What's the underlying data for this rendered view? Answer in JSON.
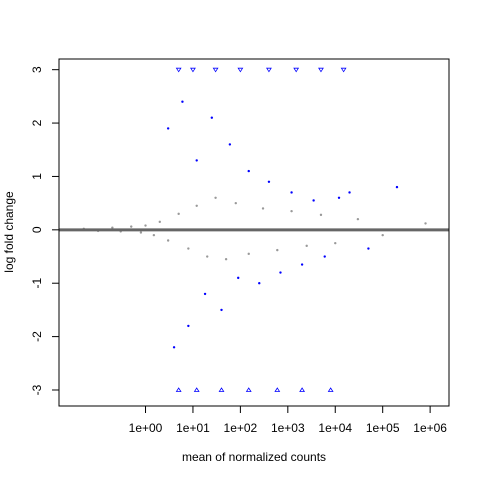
{
  "chart_data": {
    "type": "scatter",
    "title": "",
    "xlabel": "mean of normalized counts",
    "ylabel": "log fold change",
    "x_scale": "log10",
    "xlim": [
      0.015,
      2500000
    ],
    "ylim": [
      -3.3,
      3.2
    ],
    "x_ticks": [
      1,
      10,
      100,
      1000,
      10000,
      100000,
      1000000
    ],
    "x_tick_labels": [
      "1e+00",
      "1e+01",
      "1e+02",
      "1e+03",
      "1e+04",
      "1e+05",
      "1e+06"
    ],
    "y_ticks": [
      -3,
      -2,
      -1,
      0,
      1,
      2,
      3
    ],
    "y_tick_labels": [
      "-3",
      "-2",
      "-1",
      "0",
      "1",
      "2",
      "3"
    ],
    "reference_line": {
      "y": 0,
      "color": "#666666"
    },
    "grid": false,
    "legend": "none",
    "colors": {
      "not_significant": "#999999",
      "significant": "#0000ff"
    },
    "series": [
      {
        "color": "#999999",
        "marker": "dot",
        "points": [
          [
            0.05,
            0.02
          ],
          [
            0.1,
            -0.02
          ],
          [
            0.2,
            0.04
          ],
          [
            0.3,
            -0.03
          ],
          [
            0.5,
            0.06
          ],
          [
            0.8,
            -0.05
          ],
          [
            1,
            0.08
          ],
          [
            1.5,
            -0.1
          ],
          [
            2,
            0.15
          ],
          [
            3,
            -0.2
          ],
          [
            5,
            0.3
          ],
          [
            8,
            -0.35
          ],
          [
            12,
            0.45
          ],
          [
            20,
            -0.5
          ],
          [
            30,
            0.6
          ],
          [
            50,
            -0.55
          ],
          [
            80,
            0.5
          ],
          [
            150,
            -0.45
          ],
          [
            300,
            0.4
          ],
          [
            600,
            -0.38
          ],
          [
            1200,
            0.35
          ],
          [
            2500,
            -0.3
          ],
          [
            5000,
            0.28
          ],
          [
            10000,
            -0.25
          ],
          [
            30000,
            0.2
          ],
          [
            100000,
            -0.1
          ],
          [
            800000,
            0.12
          ]
        ]
      },
      {
        "color": "#0000ff",
        "marker": "dot",
        "points": [
          [
            3,
            1.9
          ],
          [
            4,
            -2.2
          ],
          [
            6,
            2.4
          ],
          [
            8,
            -1.8
          ],
          [
            12,
            1.3
          ],
          [
            18,
            -1.2
          ],
          [
            25,
            2.1
          ],
          [
            40,
            -1.5
          ],
          [
            60,
            1.6
          ],
          [
            90,
            -0.9
          ],
          [
            150,
            1.1
          ],
          [
            250,
            -1.0
          ],
          [
            400,
            0.9
          ],
          [
            700,
            -0.8
          ],
          [
            1200,
            0.7
          ],
          [
            2000,
            -0.65
          ],
          [
            3500,
            0.55
          ],
          [
            6000,
            -0.5
          ],
          [
            12000,
            0.6
          ],
          [
            20000,
            0.7
          ],
          [
            50000,
            -0.35
          ],
          [
            200000,
            0.8
          ]
        ]
      },
      {
        "color": "#0000ff",
        "marker": "triangle",
        "points": [
          [
            5,
            3
          ],
          [
            10,
            3
          ],
          [
            30,
            3
          ],
          [
            100,
            3
          ],
          [
            400,
            3
          ],
          [
            1500,
            3
          ],
          [
            5000,
            3
          ],
          [
            15000,
            3
          ],
          [
            5,
            -3
          ],
          [
            12,
            -3
          ],
          [
            40,
            -3
          ],
          [
            150,
            -3
          ],
          [
            600,
            -3
          ],
          [
            2000,
            -3
          ],
          [
            8000,
            -3
          ]
        ]
      }
    ]
  }
}
